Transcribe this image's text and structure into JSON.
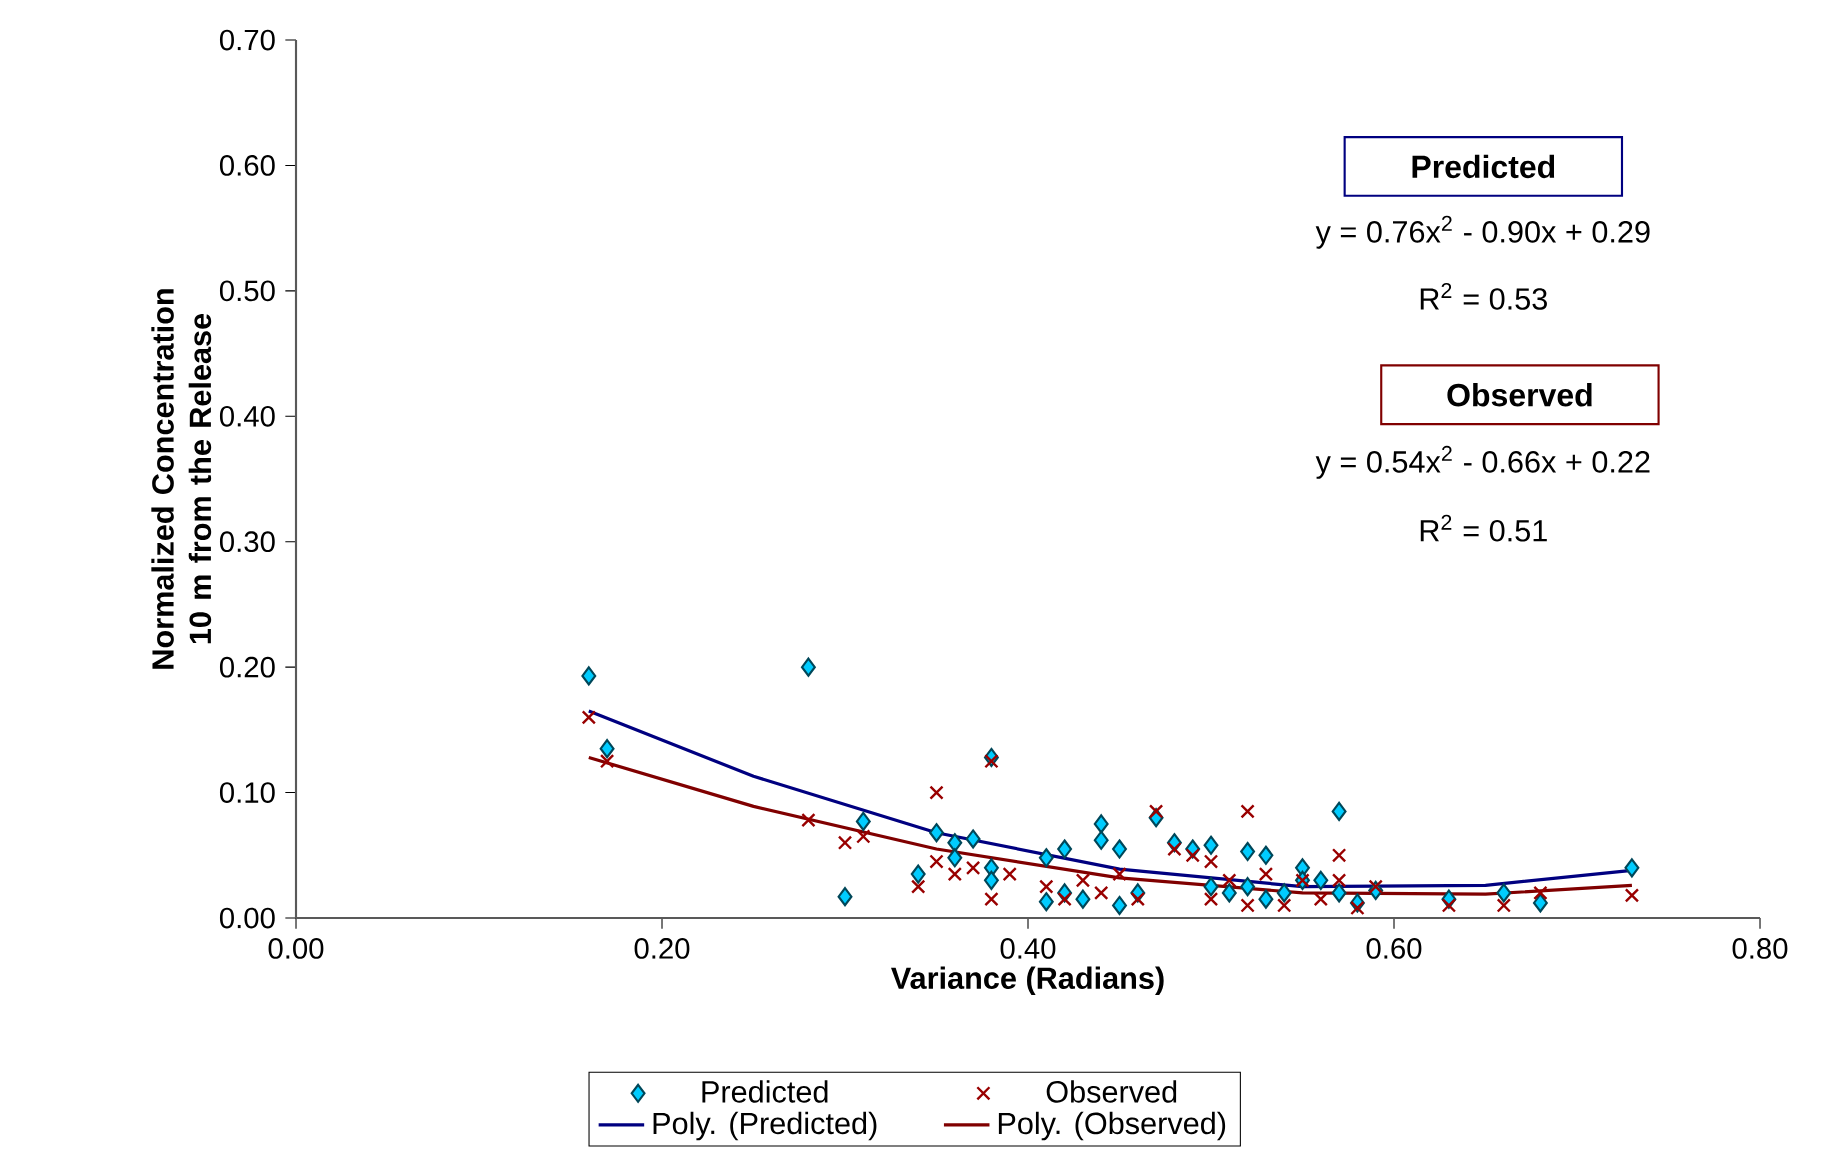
{
  "chart_data": {
    "type": "scatter",
    "xlabel": "Variance (Radians)",
    "ylabel": "Normalized Concentration 10 m from the Release",
    "xlim": [
      0,
      0.8
    ],
    "ylim": [
      0,
      0.7
    ],
    "xticks": [
      {
        "value": 0,
        "label": "0.00"
      },
      {
        "value": 0.2,
        "label": "0.20"
      },
      {
        "value": 0.4,
        "label": "0.40"
      },
      {
        "value": 0.6,
        "label": "0.60"
      },
      {
        "value": 0.8,
        "label": "0.80"
      }
    ],
    "yticks": [
      {
        "value": 0,
        "label": "0.00"
      },
      {
        "value": 0.1,
        "label": "0.10"
      },
      {
        "value": 0.2,
        "label": "0.20"
      },
      {
        "value": 0.3,
        "label": "0.30"
      },
      {
        "value": 0.4,
        "label": "0.40"
      },
      {
        "value": 0.5,
        "label": "0.50"
      },
      {
        "value": 0.6,
        "label": "0.60"
      },
      {
        "value": 0.7,
        "label": "0.70"
      }
    ],
    "legend": "bottom",
    "annotations": [
      "Predicted",
      "y = 0.76x$^{2}$ - 0.90x + 0.29",
      "R$^{2}$ = 0.53",
      "Observed",
      "y = 0.54x$^{2}$ - 0.66x + 0.22",
      "R$^{2}$ = 0.51"
    ],
    "series": [
      {
        "name": "Predicted",
        "marker": "diamond",
        "color": "#00ccff",
        "x": [
          0.16,
          0.17,
          0.28,
          0.3,
          0.31,
          0.34,
          0.35,
          0.36,
          0.36,
          0.37,
          0.38,
          0.38,
          0.38,
          0.41,
          0.41,
          0.42,
          0.42,
          0.43,
          0.44,
          0.44,
          0.45,
          0.45,
          0.46,
          0.47,
          0.48,
          0.49,
          0.5,
          0.5,
          0.51,
          0.52,
          0.52,
          0.53,
          0.53,
          0.54,
          0.55,
          0.55,
          0.56,
          0.57,
          0.57,
          0.58,
          0.59,
          0.63,
          0.66,
          0.68,
          0.73
        ],
        "values": [
          0.193,
          0.135,
          0.2,
          0.017,
          0.077,
          0.035,
          0.068,
          0.06,
          0.048,
          0.063,
          0.128,
          0.04,
          0.03,
          0.048,
          0.013,
          0.055,
          0.02,
          0.015,
          0.075,
          0.062,
          0.055,
          0.01,
          0.02,
          0.08,
          0.06,
          0.055,
          0.058,
          0.025,
          0.02,
          0.053,
          0.025,
          0.05,
          0.015,
          0.02,
          0.04,
          0.03,
          0.03,
          0.085,
          0.02,
          0.012,
          0.022,
          0.015,
          0.02,
          0.012,
          0.04
        ]
      },
      {
        "name": "Observed",
        "marker": "cross",
        "color": "#990000",
        "x": [
          0.16,
          0.17,
          0.28,
          0.3,
          0.31,
          0.34,
          0.35,
          0.35,
          0.36,
          0.37,
          0.38,
          0.38,
          0.39,
          0.41,
          0.42,
          0.43,
          0.44,
          0.45,
          0.46,
          0.47,
          0.48,
          0.49,
          0.5,
          0.5,
          0.51,
          0.52,
          0.52,
          0.53,
          0.54,
          0.55,
          0.56,
          0.57,
          0.57,
          0.58,
          0.59,
          0.63,
          0.66,
          0.68,
          0.73
        ],
        "values": [
          0.16,
          0.125,
          0.078,
          0.06,
          0.065,
          0.025,
          0.1,
          0.045,
          0.035,
          0.04,
          0.125,
          0.015,
          0.035,
          0.025,
          0.015,
          0.03,
          0.02,
          0.035,
          0.015,
          0.085,
          0.055,
          0.05,
          0.045,
          0.015,
          0.03,
          0.085,
          0.01,
          0.035,
          0.01,
          0.03,
          0.015,
          0.05,
          0.03,
          0.008,
          0.025,
          0.01,
          0.01,
          0.02,
          0.018
        ]
      },
      {
        "name": "Poly. (Predicted)",
        "type": "line",
        "marker": "none",
        "color": "#000080",
        "x": [
          0.16,
          0.25,
          0.35,
          0.45,
          0.55,
          0.65,
          0.73
        ],
        "values": [
          0.165,
          0.113,
          0.068,
          0.039,
          0.025,
          0.026,
          0.038
        ]
      },
      {
        "name": "Poly. (Observed)",
        "type": "line",
        "marker": "none",
        "color": "#800000",
        "x": [
          0.16,
          0.25,
          0.35,
          0.45,
          0.55,
          0.65,
          0.73
        ],
        "values": [
          0.128,
          0.089,
          0.055,
          0.032,
          0.02,
          0.019,
          0.026
        ]
      }
    ]
  }
}
